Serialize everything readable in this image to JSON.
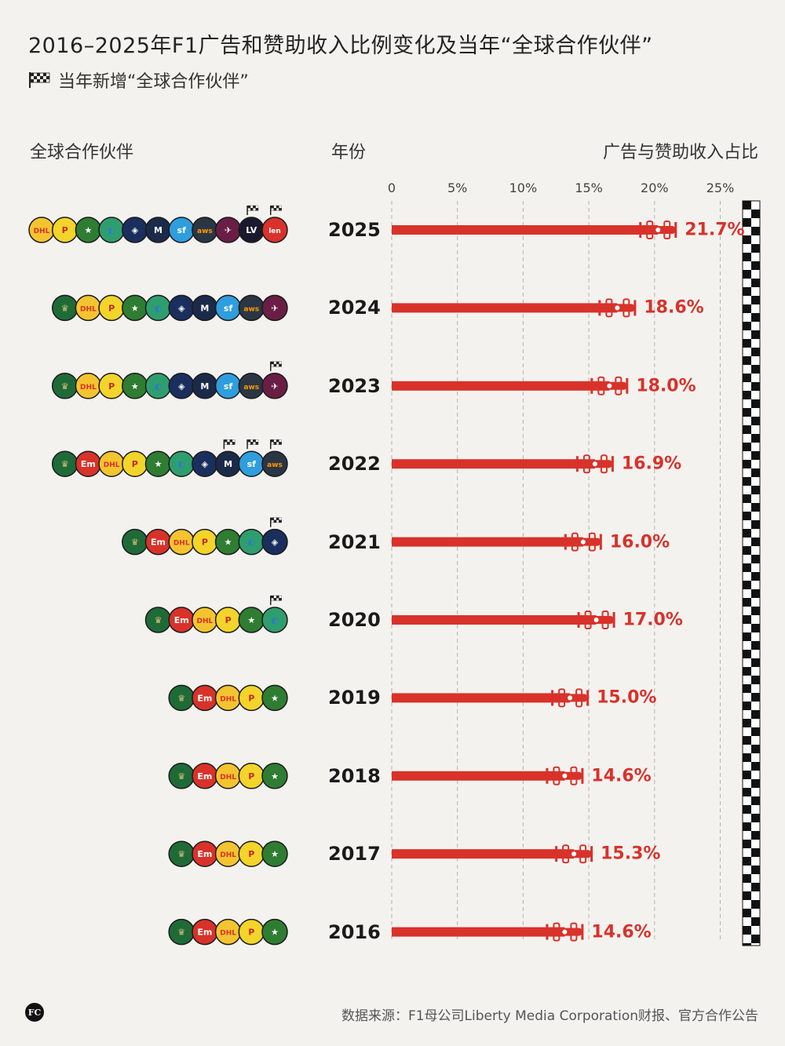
{
  "title": "2016–2025年F1广告和赞助收入比例变化及当年“全球合作伙伴”",
  "legend": {
    "icon": "checkered-flag-icon",
    "label": "当年新增“全球合作伙伴”"
  },
  "headers": {
    "partners": "全球合作伙伴",
    "year": "年份",
    "share": "广告与赞助收入占比"
  },
  "source": "数据来源：F1母公司Liberty Media Corporation财报、官方合作公告",
  "brand": "FC",
  "colors": {
    "bar": "#d8322a",
    "text": "#222222",
    "background": "#f4f2ef"
  },
  "partner_labels": {
    "rolex": "ROLEX",
    "emirates": "Emirates",
    "dhl": "DHL",
    "pirelli": "PIRELLI",
    "heineken": "Heineken",
    "aramco": "aramco",
    "crypto": "crypto.com",
    "msc": "MSC",
    "salesforce": "salesforce",
    "aws": "aws",
    "qatar": "Qatar Airways",
    "lvmh": "LVMH",
    "lenovo": "Lenovo"
  },
  "chart_data": {
    "type": "bar",
    "orientation": "horizontal",
    "xlabel": "广告与赞助收入占比",
    "xticks": [
      "0",
      "5%",
      "10%",
      "15%",
      "20%",
      "25%"
    ],
    "xlim": [
      0,
      25
    ],
    "categories": [
      "2025",
      "2024",
      "2023",
      "2022",
      "2021",
      "2020",
      "2019",
      "2018",
      "2017",
      "2016"
    ],
    "values": [
      21.7,
      18.6,
      18.0,
      16.9,
      16.0,
      17.0,
      15.0,
      14.6,
      15.3,
      14.6
    ],
    "labels": [
      "21.7%",
      "18.6%",
      "18.0%",
      "16.9%",
      "16.0%",
      "17.0%",
      "15.0%",
      "14.6%",
      "15.3%",
      "14.6%"
    ],
    "partners": [
      [
        "dhl",
        "pirelli",
        "heineken",
        "aramco",
        "crypto",
        "msc",
        "salesforce",
        "aws",
        "qatar",
        "lvmh",
        "lenovo"
      ],
      [
        "rolex",
        "dhl",
        "pirelli",
        "heineken",
        "aramco",
        "crypto",
        "msc",
        "salesforce",
        "aws",
        "qatar"
      ],
      [
        "rolex",
        "dhl",
        "pirelli",
        "heineken",
        "aramco",
        "crypto",
        "msc",
        "salesforce",
        "aws",
        "qatar"
      ],
      [
        "rolex",
        "emirates",
        "dhl",
        "pirelli",
        "heineken",
        "aramco",
        "crypto",
        "msc",
        "salesforce",
        "aws"
      ],
      [
        "rolex",
        "emirates",
        "dhl",
        "pirelli",
        "heineken",
        "aramco",
        "crypto"
      ],
      [
        "rolex",
        "emirates",
        "dhl",
        "pirelli",
        "heineken",
        "aramco"
      ],
      [
        "rolex",
        "emirates",
        "dhl",
        "pirelli",
        "heineken"
      ],
      [
        "rolex",
        "emirates",
        "dhl",
        "pirelli",
        "heineken"
      ],
      [
        "rolex",
        "emirates",
        "dhl",
        "pirelli",
        "heineken"
      ],
      [
        "rolex",
        "emirates",
        "dhl",
        "pirelli",
        "heineken"
      ]
    ],
    "new_partners": [
      [
        "lvmh",
        "lenovo"
      ],
      [],
      [
        "qatar"
      ],
      [
        "msc",
        "salesforce",
        "aws"
      ],
      [
        "crypto"
      ],
      [
        "aramco"
      ],
      [],
      [],
      [],
      []
    ],
    "grid": true,
    "finish_line": true
  }
}
